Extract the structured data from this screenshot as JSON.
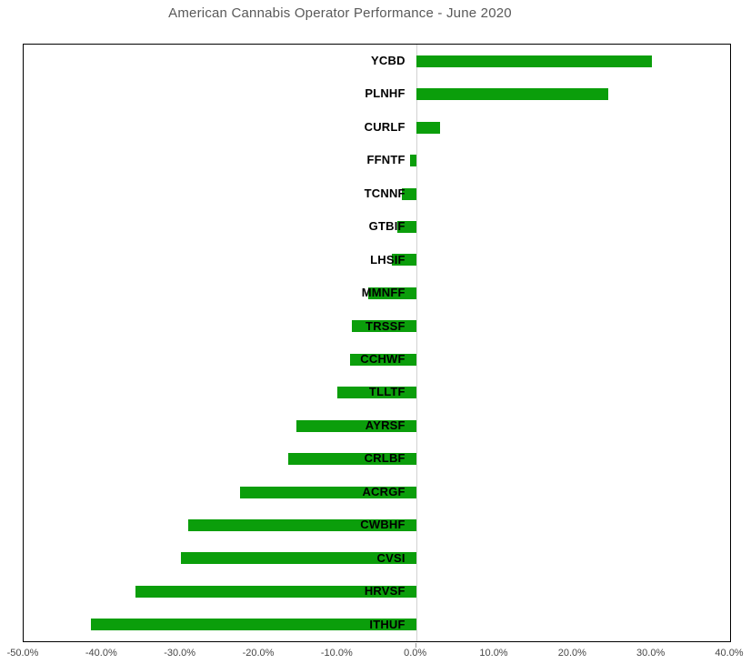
{
  "chart_data": {
    "type": "bar",
    "orientation": "horizontal",
    "title": "American Cannabis Operator Performance - June 2020",
    "categories": [
      "YCBD",
      "PLNHF",
      "CURLF",
      "FFNTF",
      "TCNNF",
      "GTBIF",
      "LHSIF",
      "MMNFF",
      "TRSSF",
      "CCHWF",
      "TLLTF",
      "AYRSF",
      "CRLBF",
      "ACRGF",
      "CWBHF",
      "CVSI",
      "HRVSF",
      "ITHUF"
    ],
    "values_pct": [
      30.0,
      24.5,
      3.1,
      -0.8,
      -1.8,
      -2.4,
      -3.1,
      -6.1,
      -8.2,
      -8.4,
      -10.0,
      -15.3,
      -16.3,
      -22.4,
      -29.0,
      -30.0,
      -35.8,
      -41.4
    ],
    "unit": "%",
    "xlim": [
      -50,
      40
    ],
    "x_tick_labels": [
      "-50.0%",
      "-40.0%",
      "-30.0%",
      "-20.0%",
      "-10.0%",
      "0.0%",
      "10.0%",
      "20.0%",
      "30.0%",
      "40.0%"
    ],
    "xlabel": "",
    "ylabel": "",
    "legend": false,
    "gridlines": false,
    "zero_axis_line": true,
    "colors": {
      "bar": "#0b9e0b",
      "title": "#595959",
      "tick_labels": "#474747",
      "category_labels": "#000000",
      "plot_border": "#000000",
      "zero_axis_line": "#d2d2d2"
    }
  }
}
